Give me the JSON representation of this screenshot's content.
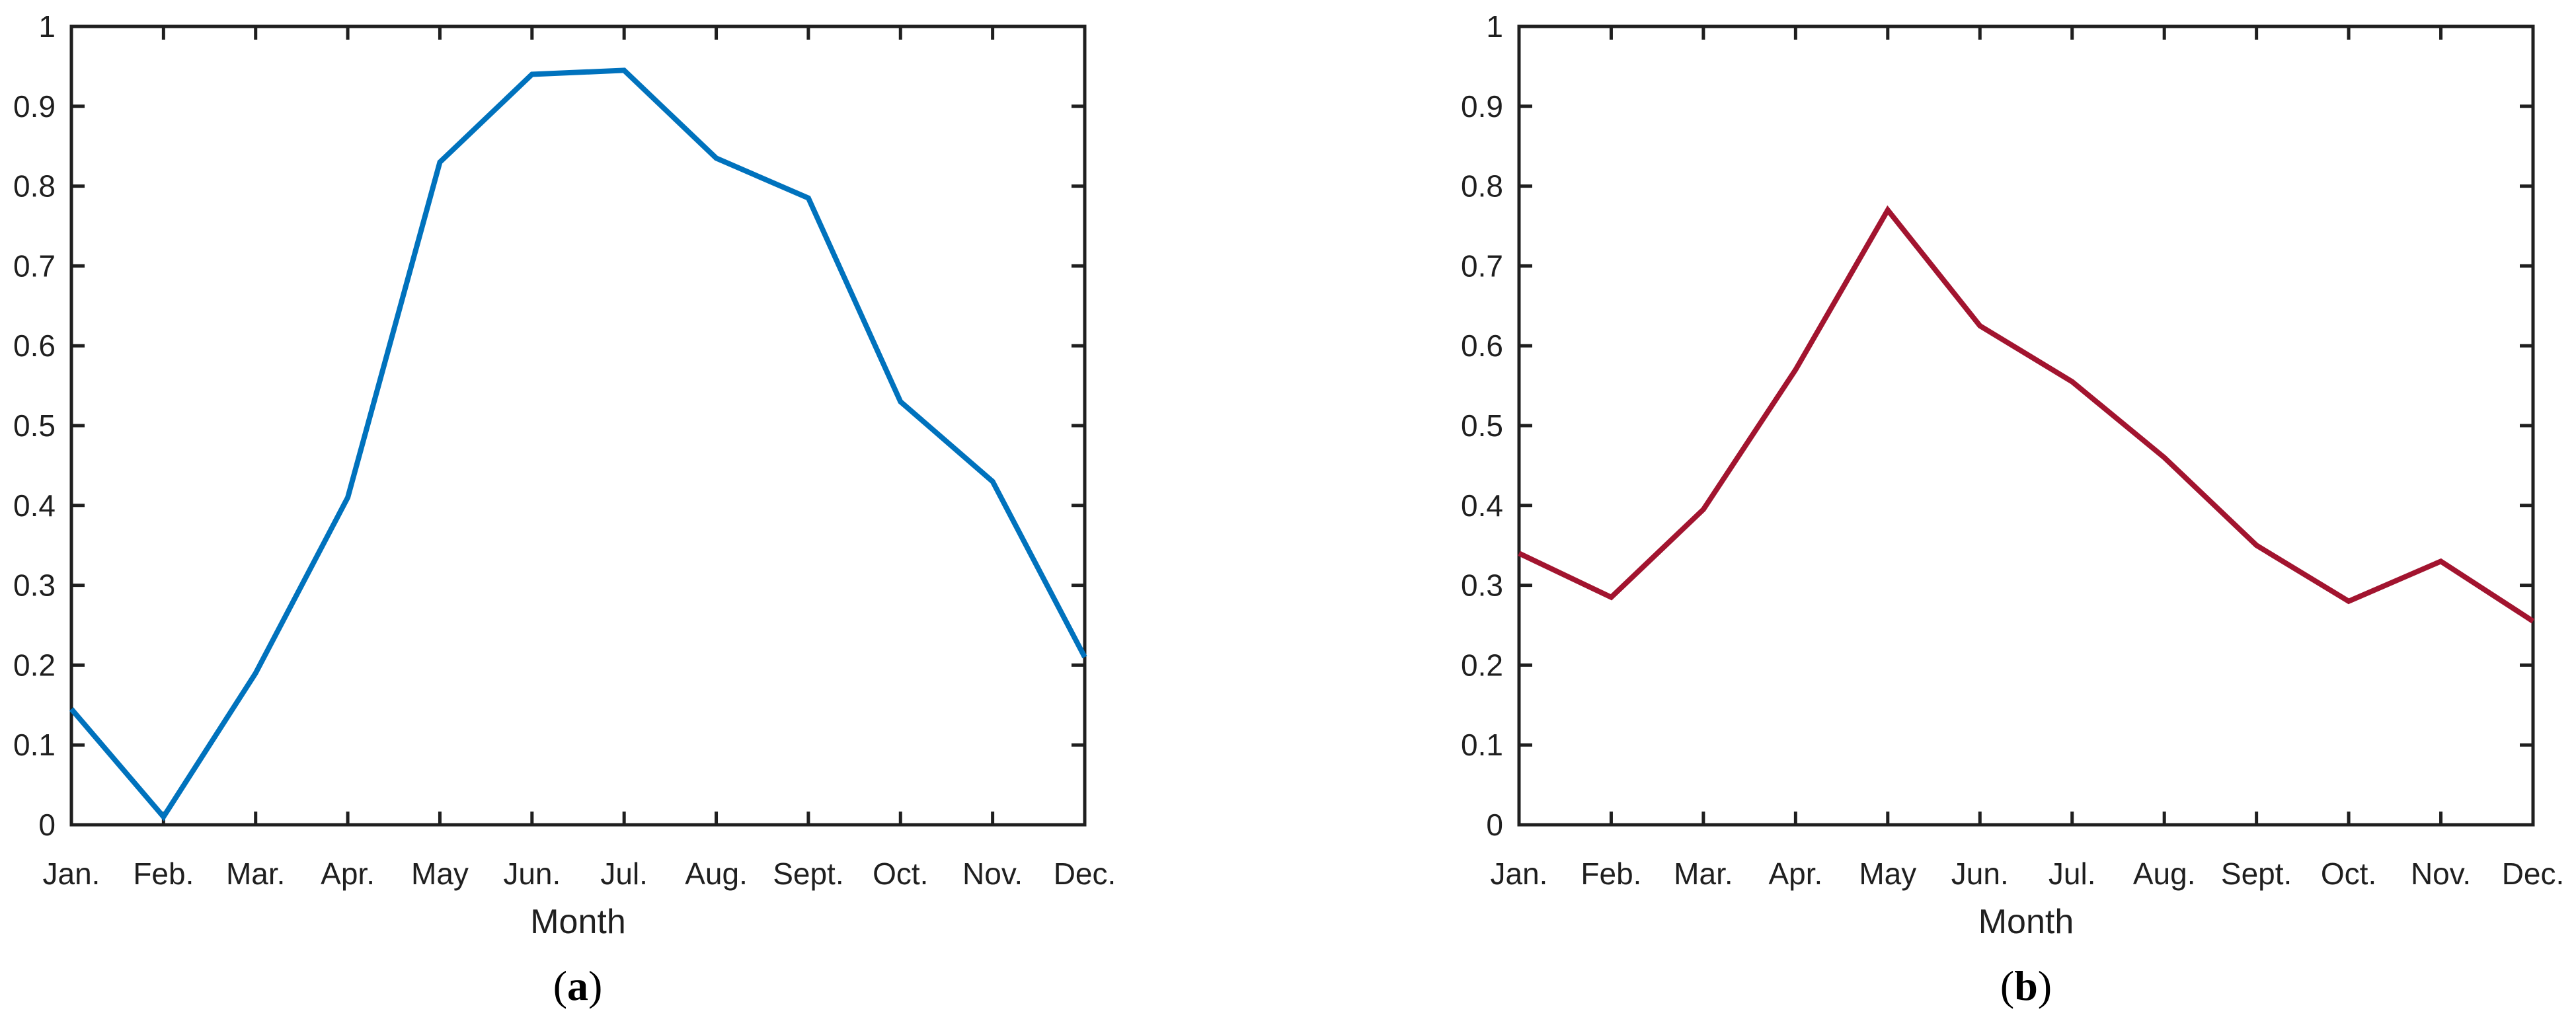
{
  "chart_data": [
    {
      "type": "line",
      "panel": "a",
      "caption": {
        "open": "(",
        "letter": "a",
        "close": ")"
      },
      "xlabel": "Month",
      "categories": [
        "Jan.",
        "Feb.",
        "Mar.",
        "Apr.",
        "May",
        "Jun.",
        "Jul.",
        "Aug.",
        "Sept.",
        "Oct.",
        "Nov.",
        "Dec."
      ],
      "values": [
        0.145,
        0.01,
        0.19,
        0.41,
        0.83,
        0.94,
        0.945,
        0.835,
        0.785,
        0.53,
        0.43,
        0.21
      ],
      "line_color": "#0072BD",
      "ylim": [
        0,
        1
      ],
      "y_tick_step": 0.1,
      "y_tick_labels": [
        "0",
        "0.1",
        "0.2",
        "0.3",
        "0.4",
        "0.5",
        "0.6",
        "0.7",
        "0.8",
        "0.9",
        "1"
      ],
      "grid": false,
      "legend": null
    },
    {
      "type": "line",
      "panel": "b",
      "caption": {
        "open": "(",
        "letter": "b",
        "close": ")"
      },
      "xlabel": "Month",
      "categories": [
        "Jan.",
        "Feb.",
        "Mar.",
        "Apr.",
        "May",
        "Jun.",
        "Jul.",
        "Aug.",
        "Sept.",
        "Oct.",
        "Nov.",
        "Dec."
      ],
      "values": [
        0.34,
        0.285,
        0.395,
        0.57,
        0.77,
        0.625,
        0.555,
        0.46,
        0.35,
        0.28,
        0.33,
        0.255
      ],
      "line_color": "#A2142F",
      "ylim": [
        0,
        1
      ],
      "y_tick_step": 0.1,
      "y_tick_labels": [
        "0",
        "0.1",
        "0.2",
        "0.3",
        "0.4",
        "0.5",
        "0.6",
        "0.7",
        "0.8",
        "0.9",
        "1"
      ],
      "grid": false,
      "legend": null
    }
  ],
  "axis_color": "#1f1f1f"
}
